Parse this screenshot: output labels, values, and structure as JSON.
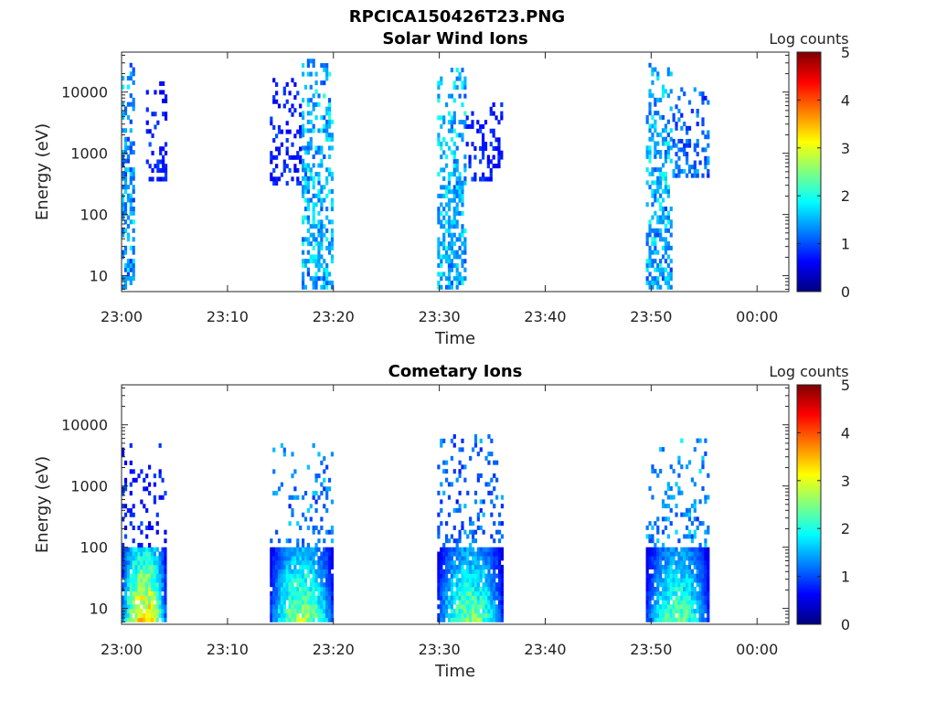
{
  "figure": {
    "title": "RPCICA150426T23.PNG"
  },
  "colors": {
    "colormap": [
      "#00007f",
      "#0000ff",
      "#0080ff",
      "#00ffff",
      "#80ff80",
      "#ffff00",
      "#ff8000",
      "#ff0000",
      "#7f0000"
    ],
    "axis": "#262626",
    "background": "#ffffff"
  },
  "chart_data": [
    {
      "type": "heatmap",
      "title": "Solar Wind Ions",
      "xlabel": "Time",
      "ylabel": "Energy (eV)",
      "x_ticks": [
        "23:00",
        "23:10",
        "23:20",
        "23:30",
        "23:40",
        "23:50",
        "00:00"
      ],
      "x_range_minutes": [
        0,
        63
      ],
      "y_scale": "log",
      "y_ticks": [
        "10",
        "100",
        "1000",
        "10000"
      ],
      "y_range": [
        5.5,
        45000
      ],
      "colorbar": {
        "label": "Log counts",
        "range": [
          0,
          5
        ],
        "ticks": [
          "0",
          "1",
          "2",
          "3",
          "4",
          "5"
        ]
      },
      "blocks": [
        {
          "t_start": 0,
          "t_end": 1.1,
          "e_min": 6,
          "e_max": 30000,
          "peak": 1.8,
          "density": 0.7
        },
        {
          "t_start": 2.3,
          "t_end": 4.2,
          "e_min": 350,
          "e_max": 15000,
          "peak": 1.0,
          "density": 0.35
        },
        {
          "t_start": 14.0,
          "t_end": 17.0,
          "e_min": 300,
          "e_max": 20000,
          "peak": 1.0,
          "density": 0.35
        },
        {
          "t_start": 17.0,
          "t_end": 20.0,
          "e_min": 6,
          "e_max": 35000,
          "peak": 2.0,
          "density": 0.65
        },
        {
          "t_start": 29.8,
          "t_end": 32.5,
          "e_min": 6,
          "e_max": 25000,
          "peak": 2.0,
          "density": 0.65
        },
        {
          "t_start": 32.5,
          "t_end": 36.0,
          "e_min": 350,
          "e_max": 8000,
          "peak": 1.0,
          "density": 0.35
        },
        {
          "t_start": 49.5,
          "t_end": 52.0,
          "e_min": 6,
          "e_max": 30000,
          "peak": 2.0,
          "density": 0.65
        },
        {
          "t_start": 52.0,
          "t_end": 55.5,
          "e_min": 400,
          "e_max": 12000,
          "peak": 1.5,
          "density": 0.4
        }
      ]
    },
    {
      "type": "heatmap",
      "title": "Cometary Ions",
      "xlabel": "Time",
      "ylabel": "Energy (eV)",
      "x_ticks": [
        "23:00",
        "23:10",
        "23:20",
        "23:30",
        "23:40",
        "23:50",
        "00:00"
      ],
      "x_range_minutes": [
        0,
        63
      ],
      "y_scale": "log",
      "y_ticks": [
        "10",
        "100",
        "1000",
        "10000"
      ],
      "y_range": [
        5.5,
        45000
      ],
      "colorbar": {
        "label": "Log counts",
        "range": [
          0,
          5
        ],
        "ticks": [
          "0",
          "1",
          "2",
          "3",
          "4",
          "5"
        ]
      },
      "blocks": [
        {
          "t_start": 0,
          "t_end": 4.2,
          "e_min": 6,
          "e_max": 100,
          "peak": 3.6,
          "density": 0.95
        },
        {
          "t_start": 0,
          "t_end": 4.2,
          "e_min": 100,
          "e_max": 5000,
          "peak": 1.0,
          "density": 0.25
        },
        {
          "t_start": 14.0,
          "t_end": 20.0,
          "e_min": 6,
          "e_max": 100,
          "peak": 2.9,
          "density": 0.95
        },
        {
          "t_start": 14.0,
          "t_end": 20.0,
          "e_min": 100,
          "e_max": 5000,
          "peak": 1.6,
          "density": 0.25
        },
        {
          "t_start": 29.8,
          "t_end": 36.0,
          "e_min": 6,
          "e_max": 100,
          "peak": 2.7,
          "density": 0.95
        },
        {
          "t_start": 29.8,
          "t_end": 36.0,
          "e_min": 100,
          "e_max": 7000,
          "peak": 1.5,
          "density": 0.25
        },
        {
          "t_start": 49.5,
          "t_end": 55.5,
          "e_min": 6,
          "e_max": 100,
          "peak": 2.6,
          "density": 0.95
        },
        {
          "t_start": 49.5,
          "t_end": 55.5,
          "e_min": 100,
          "e_max": 6000,
          "peak": 1.8,
          "density": 0.25
        }
      ]
    }
  ]
}
